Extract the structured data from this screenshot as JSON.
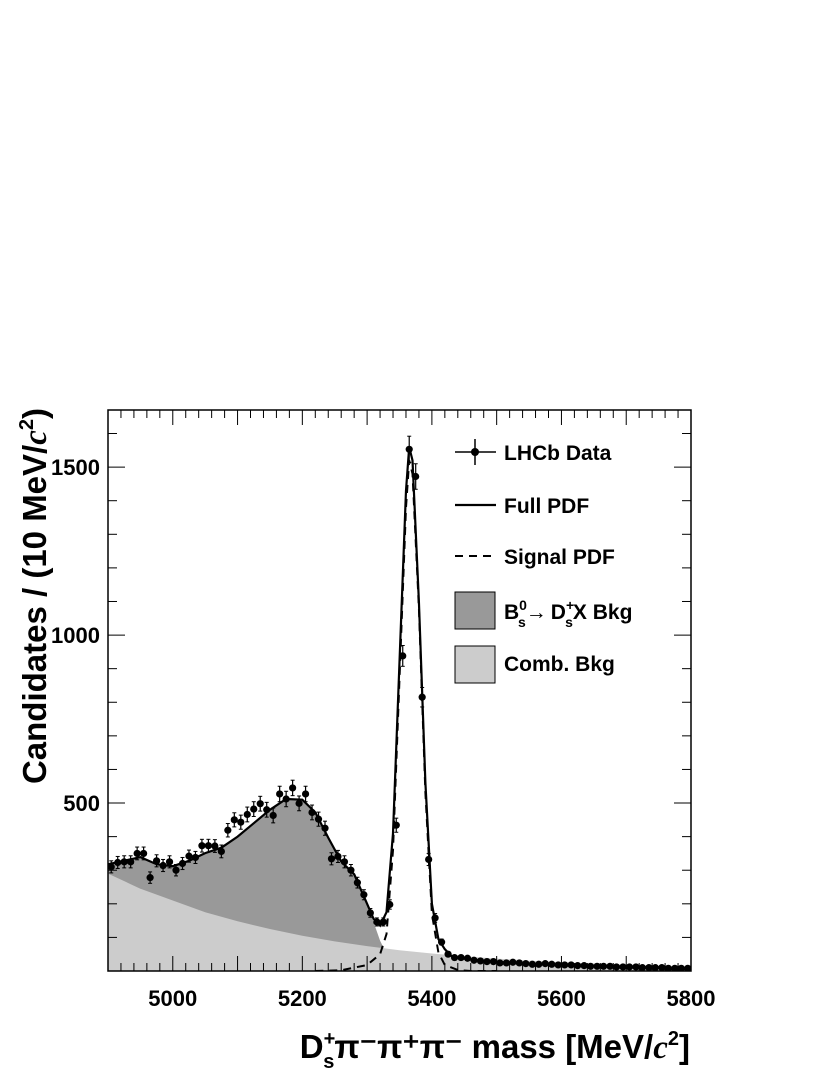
{
  "chart_data": {
    "type": "line",
    "xlim": [
      4900,
      5800
    ],
    "ylim": [
      0,
      1670
    ],
    "x_ticks": [
      5000,
      5200,
      5400,
      5600,
      5800
    ],
    "y_ticks": [
      500,
      1000,
      1500
    ],
    "xlabel": {
      "particle": "D",
      "charge_sup": "+",
      "flavor_sub": "s",
      "rest": "π⁻π⁺π⁻ mass [MeV/",
      "unit_c": "c",
      "unit_exp": "2",
      "close": "]"
    },
    "ylabel": {
      "text": "Candidates / (10 MeV/",
      "unit_c": "c",
      "unit_exp": "2",
      "close": ")"
    },
    "legend": {
      "position": "top-right",
      "data": "LHCb Data",
      "full_pdf": "Full PDF",
      "signal_pdf": "Signal PDF",
      "bkg_B": "B",
      "bkg_B_sup": "0",
      "bkg_B_sub": "s",
      "bkg_arrow": "→",
      "bkg_D": "D",
      "bkg_D_sup": "+",
      "bkg_D_sub": "s",
      "bkg_rest": "X Bkg",
      "comb_bkg": "Comb. Bkg"
    },
    "colors": {
      "partial_bkg": "#999999",
      "comb_bkg": "#cccccc",
      "line": "#000000"
    },
    "data_points": {
      "x": [
        4905,
        4915,
        4925,
        4935,
        4945,
        4955,
        4965,
        4975,
        4985,
        4995,
        5005,
        5015,
        5025,
        5035,
        5045,
        5055,
        5065,
        5075,
        5085,
        5095,
        5105,
        5115,
        5125,
        5135,
        5145,
        5155,
        5165,
        5175,
        5185,
        5195,
        5205,
        5215,
        5225,
        5235,
        5245,
        5255,
        5265,
        5275,
        5285,
        5295,
        5305,
        5315,
        5325,
        5335,
        5345,
        5355,
        5365,
        5375,
        5385,
        5395,
        5405,
        5415,
        5425,
        5435,
        5445,
        5455,
        5465,
        5475,
        5485,
        5495,
        5505,
        5515,
        5525,
        5535,
        5545,
        5555,
        5565,
        5575,
        5585,
        5595,
        5605,
        5615,
        5625,
        5635,
        5645,
        5655,
        5665,
        5675,
        5685,
        5695,
        5705,
        5715,
        5725,
        5735,
        5745,
        5755,
        5765,
        5775,
        5785,
        5795
      ],
      "y": [
        310,
        323,
        325,
        325,
        350,
        350,
        278,
        328,
        314,
        325,
        300,
        320,
        342,
        338,
        373,
        373,
        372,
        356,
        419,
        450,
        443,
        466,
        482,
        498,
        480,
        463,
        527,
        512,
        545,
        499,
        527,
        472,
        452,
        425,
        334,
        341,
        325,
        300,
        263,
        227,
        173,
        146,
        146,
        198,
        434,
        938,
        1553,
        1472,
        815,
        332,
        158,
        86,
        50,
        40,
        40,
        38,
        32,
        30,
        28,
        28,
        24,
        24,
        26,
        24,
        22,
        20,
        20,
        22,
        20,
        18,
        18,
        18,
        16,
        16,
        14,
        14,
        14,
        14,
        12,
        12,
        12,
        12,
        10,
        10,
        10,
        10,
        8,
        8,
        8,
        8
      ],
      "yerr": [
        18,
        18,
        18,
        18,
        19,
        19,
        17,
        18,
        18,
        18,
        17,
        18,
        18,
        18,
        19,
        19,
        19,
        19,
        20,
        21,
        21,
        22,
        22,
        22,
        22,
        22,
        23,
        23,
        23,
        22,
        23,
        22,
        21,
        21,
        18,
        18,
        18,
        17,
        16,
        15,
        13,
        12,
        12,
        14,
        21,
        31,
        39,
        38,
        29,
        18,
        13,
        9,
        7,
        6,
        6,
        6,
        6,
        5,
        5,
        5,
        5,
        5,
        5,
        5,
        5,
        4,
        4,
        5,
        4,
        4,
        4,
        4,
        4,
        4,
        4,
        4,
        4,
        4,
        3,
        3,
        3,
        3,
        3,
        3,
        3,
        3,
        3,
        3,
        3,
        3
      ]
    },
    "full_pdf": {
      "x": [
        4900,
        4925,
        4950,
        4975,
        5000,
        5025,
        5050,
        5075,
        5100,
        5125,
        5150,
        5175,
        5200,
        5220,
        5240,
        5260,
        5280,
        5300,
        5310,
        5320,
        5330,
        5340,
        5350,
        5360,
        5365,
        5370,
        5380,
        5390,
        5400,
        5410,
        5420,
        5430,
        5440,
        5460,
        5500,
        5550,
        5600,
        5650,
        5700,
        5750,
        5800
      ],
      "y": [
        318,
        328,
        339,
        318,
        312,
        328,
        351,
        367,
        400,
        440,
        480,
        512,
        510,
        472,
        397,
        326,
        288,
        200,
        155,
        135,
        175,
        410,
        920,
        1430,
        1560,
        1520,
        1100,
        560,
        200,
        95,
        65,
        45,
        40,
        34,
        27,
        21,
        17,
        14,
        12,
        10,
        9
      ]
    },
    "signal_pdf": {
      "x": [
        5220,
        5260,
        5300,
        5320,
        5330,
        5340,
        5350,
        5360,
        5365,
        5370,
        5380,
        5390,
        5400,
        5410,
        5420,
        5440,
        5460,
        5500
      ],
      "y": [
        0,
        2,
        18,
        50,
        110,
        360,
        870,
        1380,
        1520,
        1480,
        1080,
        530,
        170,
        55,
        18,
        3,
        0,
        0
      ]
    },
    "partial_bkg_top": {
      "x": [
        4900,
        4925,
        4950,
        4975,
        5000,
        5025,
        5050,
        5075,
        5100,
        5125,
        5150,
        5175,
        5200,
        5220,
        5240,
        5260,
        5280,
        5300,
        5310,
        5320,
        5330
      ],
      "y": [
        318,
        328,
        339,
        318,
        312,
        328,
        351,
        367,
        400,
        440,
        480,
        512,
        510,
        472,
        397,
        326,
        288,
        200,
        145,
        90,
        52
      ]
    },
    "comb_bkg": {
      "x": [
        4900,
        4950,
        5000,
        5050,
        5100,
        5150,
        5200,
        5250,
        5300,
        5350,
        5400,
        5450,
        5500,
        5550,
        5600,
        5650,
        5700,
        5750,
        5800
      ],
      "y": [
        290,
        245,
        210,
        175,
        148,
        125,
        105,
        88,
        74,
        62,
        52,
        44,
        37,
        31,
        26,
        22,
        18,
        15,
        13
      ]
    }
  }
}
